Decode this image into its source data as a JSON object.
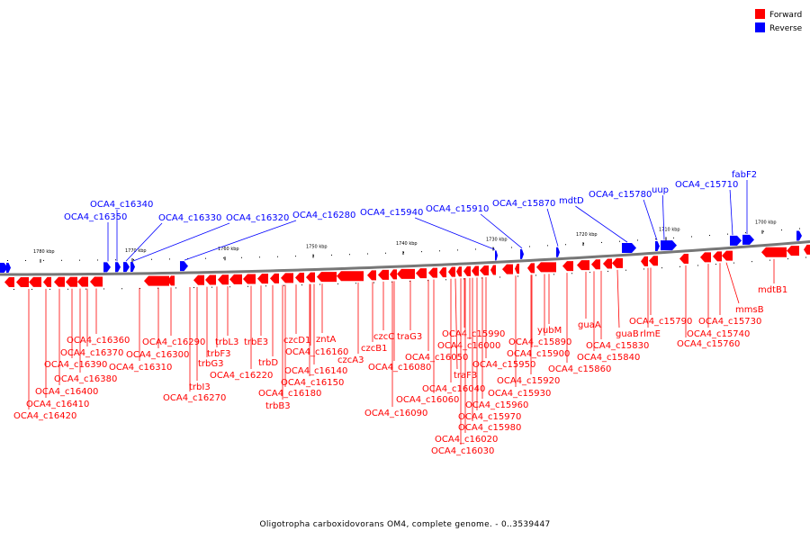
{
  "caption": "Oligotropha carboxidovorans OM4, complete genome. - 0..3539447",
  "legend": [
    {
      "label": "Forward",
      "color": "#ff0000"
    },
    {
      "label": "Reverse",
      "color": "#0000ff"
    }
  ],
  "colors": {
    "forward": "#ff0000",
    "reverse": "#0000ff",
    "backbone": "#777777"
  },
  "scale_ticks": [
    "1780 kbp",
    "1770 kbp",
    "1760 kbp",
    "1750 kbp",
    "1740 kbp",
    "1730 kbp",
    "1720 kbp",
    "1710 kbp",
    "1700 kbp"
  ],
  "reverse_genes": [
    "OCA4_c16340",
    "OCA4_c16350",
    "OCA4_c16330",
    "OCA4_c16320",
    "OCA4_c16280",
    "OCA4_c15940",
    "OCA4_c15910",
    "OCA4_c15870",
    "mdtD",
    "OCA4_c15780",
    "uup",
    "OCA4_c15710",
    "fabF2"
  ],
  "forward_genes": [
    "OCA4_c16360",
    "OCA4_c16370",
    "OCA4_c16390",
    "OCA4_c16380",
    "OCA4_c16400",
    "OCA4_c16410",
    "OCA4_c16420",
    "OCA4_c16290",
    "OCA4_c16300",
    "OCA4_c16310",
    "trbL3",
    "trbF3",
    "trbG3",
    "trbI3",
    "OCA4_c16270",
    "trbE3",
    "trbD",
    "OCA4_c16220",
    "OCA4_c16180",
    "trbB3",
    "czcD1",
    "OCA4_c16160",
    "OCA4_c16140",
    "OCA4_c16150",
    "zntA",
    "czcA3",
    "czcC",
    "czcB1",
    "traG3",
    "OCA4_c16080",
    "OCA4_c16090",
    "OCA4_c16050",
    "OCA4_c16060",
    "OCA4_c16040",
    "traF3",
    "OCA4_c16020",
    "OCA4_c16030",
    "OCA4_c15990",
    "OCA4_c16000",
    "OCA4_c15950",
    "OCA4_c15960",
    "OCA4_c15970",
    "OCA4_c15980",
    "yubM",
    "OCA4_c15890",
    "OCA4_c15900",
    "OCA4_c15920",
    "OCA4_c15930",
    "OCA4_c15860",
    "guaA",
    "OCA4_c15830",
    "OCA4_c15840",
    "guaB",
    "rlmE",
    "OCA4_c15790",
    "OCA4_c15730",
    "OCA4_c15740",
    "OCA4_c15760",
    "mmsB",
    "mdtB1"
  ]
}
